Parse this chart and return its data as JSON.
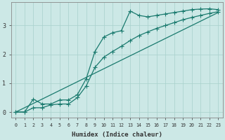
{
  "xlabel": "Humidex (Indice chaleur)",
  "ylabel": "",
  "bg_color": "#cce8e6",
  "line_color": "#1a7a6e",
  "grid_color": "#a8d0cc",
  "axis_color": "#888888",
  "xlim": [
    -0.5,
    23.5
  ],
  "ylim": [
    -0.2,
    3.8
  ],
  "xticks": [
    0,
    1,
    2,
    3,
    4,
    5,
    6,
    7,
    8,
    9,
    10,
    11,
    12,
    13,
    14,
    15,
    16,
    17,
    18,
    19,
    20,
    21,
    22,
    23
  ],
  "yticks": [
    0,
    1,
    2,
    3
  ],
  "line1_x": [
    0,
    1,
    2,
    3,
    4,
    5,
    6,
    7,
    8,
    9,
    10,
    11,
    12,
    13,
    14,
    15,
    16,
    17,
    18,
    19,
    20,
    21,
    22,
    23
  ],
  "line1_y": [
    0.0,
    0.0,
    0.45,
    0.28,
    0.28,
    0.42,
    0.42,
    0.6,
    1.15,
    2.1,
    2.6,
    2.75,
    2.82,
    3.5,
    3.35,
    3.3,
    3.35,
    3.4,
    3.45,
    3.5,
    3.55,
    3.57,
    3.58,
    3.55
  ],
  "line2_x": [
    0,
    1,
    2,
    3,
    4,
    5,
    6,
    7,
    8,
    9,
    10,
    11,
    12,
    13,
    14,
    15,
    16,
    17,
    18,
    19,
    20,
    21,
    22,
    23
  ],
  "line2_y": [
    0.0,
    0.0,
    0.15,
    0.15,
    0.25,
    0.28,
    0.28,
    0.5,
    0.9,
    1.55,
    1.9,
    2.1,
    2.28,
    2.48,
    2.65,
    2.78,
    2.9,
    3.0,
    3.1,
    3.2,
    3.28,
    3.35,
    3.42,
    3.48
  ],
  "line3_x": [
    0,
    23
  ],
  "line3_y": [
    0.0,
    3.45
  ]
}
